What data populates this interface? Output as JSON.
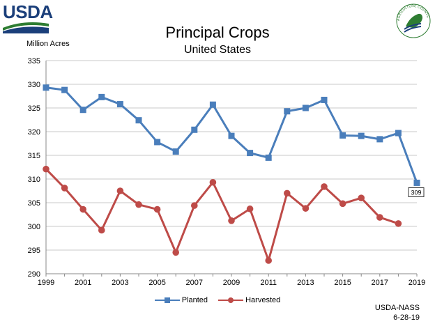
{
  "header": {
    "logo_text": "USDA",
    "badge_text": "AGRICULTURE COUNTS"
  },
  "footer": {
    "source": "USDA-NASS",
    "date": "6-28-19"
  },
  "colors": {
    "planted": "#4a7ebb",
    "harvested": "#be4b48",
    "grid": "#c8c8c8",
    "usda_blue": "#1b3f7a",
    "usda_green": "#2e7d32"
  },
  "chart_data": {
    "type": "line",
    "title": "Principal Crops",
    "subtitle": "United States",
    "ylabel": "Million Acres",
    "xlabel": "",
    "ylim": [
      290,
      335
    ],
    "yticks": [
      290,
      295,
      300,
      305,
      310,
      315,
      320,
      325,
      330,
      335
    ],
    "xlim": [
      1999,
      2019
    ],
    "xticks": [
      1999,
      2001,
      2003,
      2005,
      2007,
      2009,
      2011,
      2013,
      2015,
      2017,
      2019
    ],
    "grid": true,
    "legend": "bottom",
    "series": [
      {
        "name": "Planted",
        "marker": "square",
        "x": [
          1999,
          2000,
          2001,
          2002,
          2003,
          2004,
          2005,
          2006,
          2007,
          2008,
          2009,
          2010,
          2011,
          2012,
          2013,
          2014,
          2015,
          2016,
          2017,
          2018,
          2019
        ],
        "values": [
          329.3,
          328.8,
          324.6,
          327.3,
          325.8,
          322.4,
          317.8,
          315.8,
          320.4,
          325.7,
          319.1,
          315.5,
          314.5,
          324.3,
          325.0,
          326.7,
          319.2,
          319.1,
          318.4,
          319.7,
          309.2
        ],
        "data_label": {
          "x": 2019,
          "text": "309"
        }
      },
      {
        "name": "Harvested",
        "marker": "circle",
        "x": [
          1999,
          2000,
          2001,
          2002,
          2003,
          2004,
          2005,
          2006,
          2007,
          2008,
          2009,
          2010,
          2011,
          2012,
          2013,
          2014,
          2015,
          2016,
          2017,
          2018
        ],
        "values": [
          312.1,
          308.1,
          303.6,
          299.2,
          307.5,
          304.6,
          303.6,
          294.5,
          304.4,
          309.3,
          301.2,
          303.7,
          292.8,
          307.0,
          303.8,
          308.4,
          304.8,
          306.0,
          301.9,
          300.6
        ]
      }
    ]
  }
}
